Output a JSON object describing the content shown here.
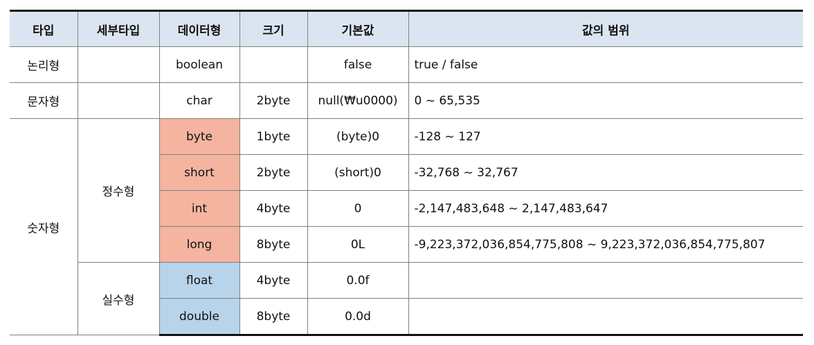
{
  "table": {
    "headers": [
      "타입",
      "세부타입",
      "데이터형",
      "크기",
      "기본값",
      "값의 범위"
    ],
    "type_logical": "논리형",
    "type_char": "문자형",
    "type_numeric": "숫자형",
    "subtype_integer": "정수형",
    "subtype_real": "실수형",
    "rows": [
      {
        "datatype": "boolean",
        "size": "",
        "default": "false",
        "range": "true / false"
      },
      {
        "datatype": "char",
        "size": "2byte",
        "default": "null(₩u0000)",
        "range": "0 ~ 65,535"
      },
      {
        "datatype": "byte",
        "size": "1byte",
        "default": "(byte)0",
        "range": "-128 ~ 127"
      },
      {
        "datatype": "short",
        "size": "2byte",
        "default": "(short)0",
        "range": "-32,768 ~ 32,767"
      },
      {
        "datatype": "int",
        "size": "4byte",
        "default": "0",
        "range": "-2,147,483,648 ~ 2,147,483,647"
      },
      {
        "datatype": "long",
        "size": "8byte",
        "default": "0L",
        "range": "-9,223,372,036,854,775,808 ~ 9,223,372,036,854,775,807"
      },
      {
        "datatype": "float",
        "size": "4byte",
        "default": "0.0f",
        "range": ""
      },
      {
        "datatype": "double",
        "size": "8byte",
        "default": "0.0d",
        "range": ""
      }
    ]
  },
  "colors": {
    "header_bg": "#dbe5f1",
    "integer_cell_bg": "#f4b4a0",
    "real_cell_bg": "#b8d4ea"
  }
}
